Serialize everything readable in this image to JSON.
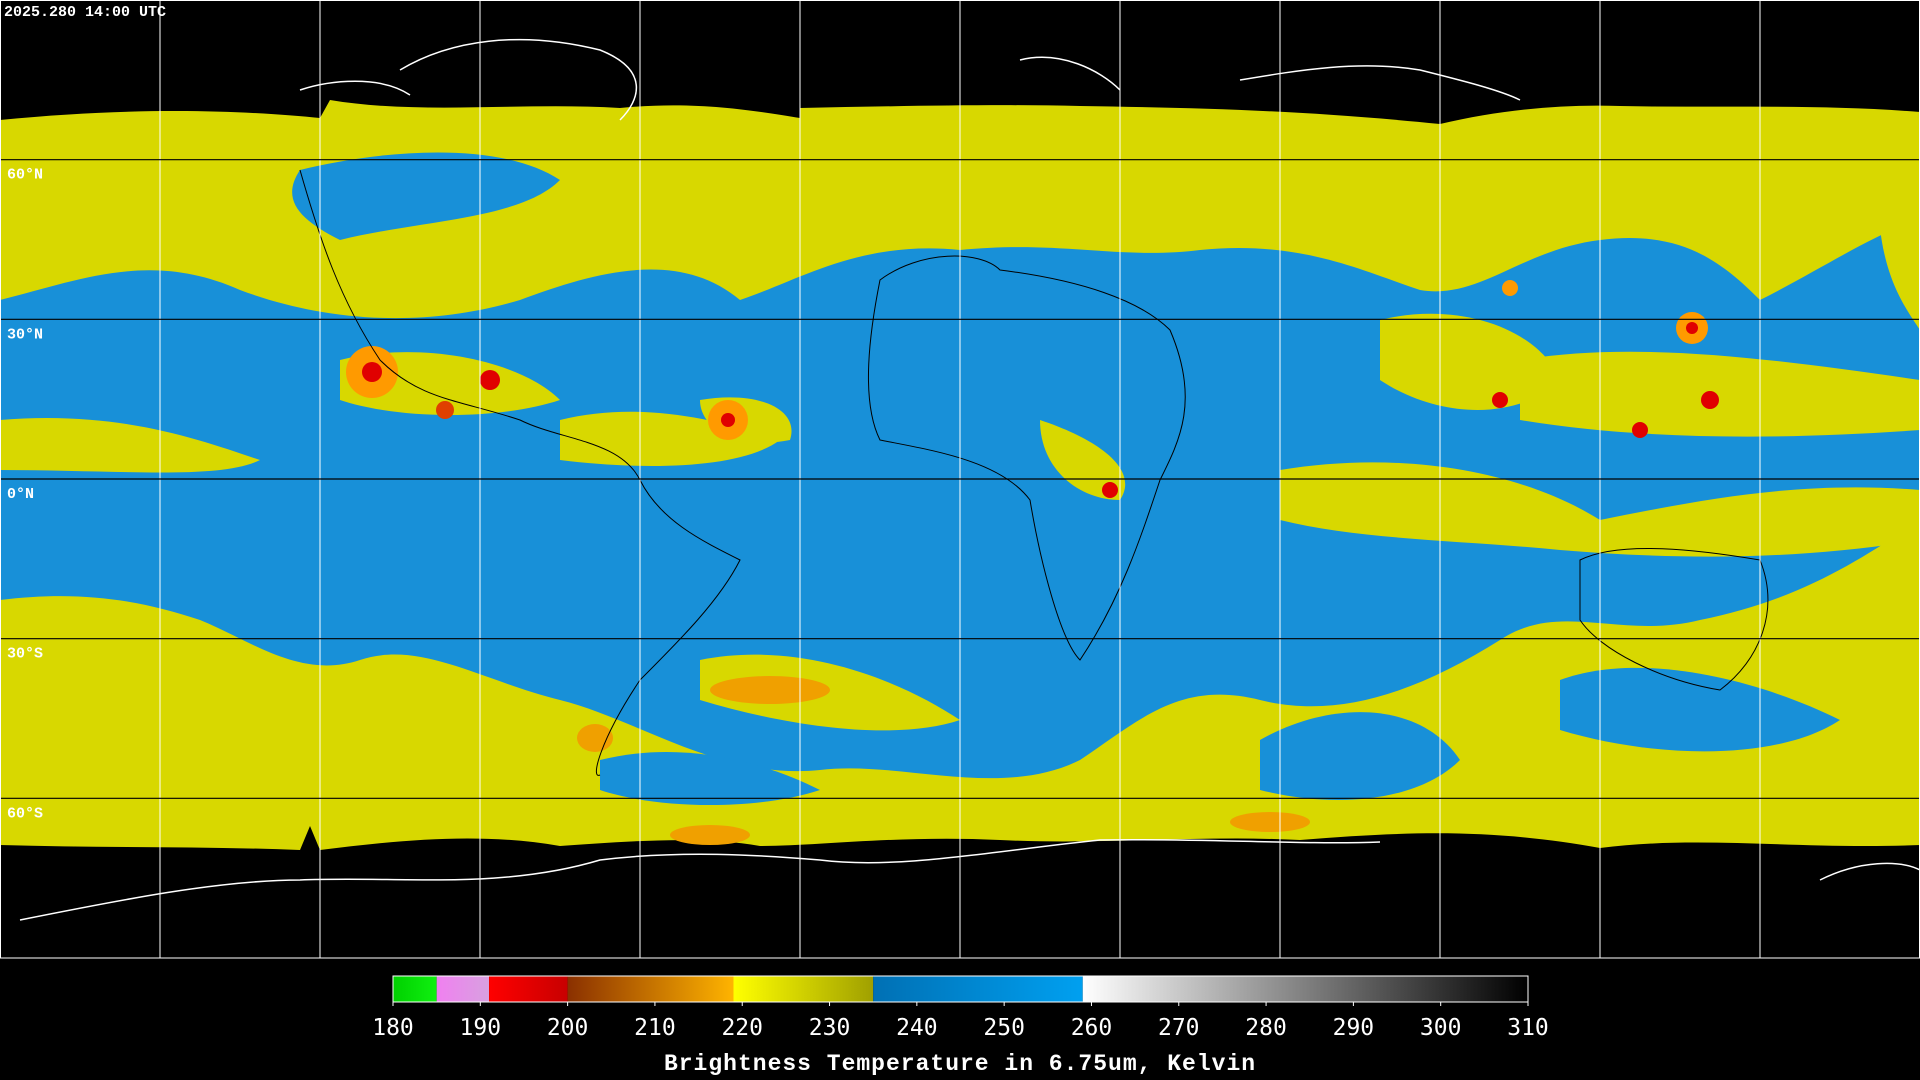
{
  "header": {
    "timestamp": "2025.280 14:00 UTC"
  },
  "map": {
    "ylim": [
      -90,
      90
    ],
    "latitude_lines": [
      {
        "value": 60,
        "label": "60°N"
      },
      {
        "value": 30,
        "label": "30°N"
      },
      {
        "value": 0,
        "label": "0°N"
      },
      {
        "value": -30,
        "label": "30°S"
      },
      {
        "value": -60,
        "label": "60°S"
      }
    ]
  },
  "colorbar": {
    "title": "Brightness Temperature in 6.75um, Kelvin",
    "lim": [
      180,
      310
    ],
    "ticks": [
      180,
      190,
      200,
      210,
      220,
      230,
      240,
      250,
      260,
      270,
      280,
      290,
      300,
      310
    ],
    "segments": [
      {
        "from": 180,
        "to": 185,
        "colors": [
          "#00d000",
          "#10f010"
        ]
      },
      {
        "from": 185,
        "to": 191,
        "colors": [
          "#f080f0",
          "#d8a0e0"
        ]
      },
      {
        "from": 191,
        "to": 200,
        "colors": [
          "#ff0000",
          "#c80000"
        ]
      },
      {
        "from": 200,
        "to": 219,
        "colors": [
          "#8a3000",
          "#ffb400"
        ]
      },
      {
        "from": 219,
        "to": 235,
        "colors": [
          "#ffff00",
          "#a0a000"
        ]
      },
      {
        "from": 235,
        "to": 259,
        "colors": [
          "#0070b4",
          "#00a0f0"
        ]
      },
      {
        "from": 259,
        "to": 310,
        "colors": [
          "#ffffff",
          "#000000"
        ]
      }
    ]
  }
}
